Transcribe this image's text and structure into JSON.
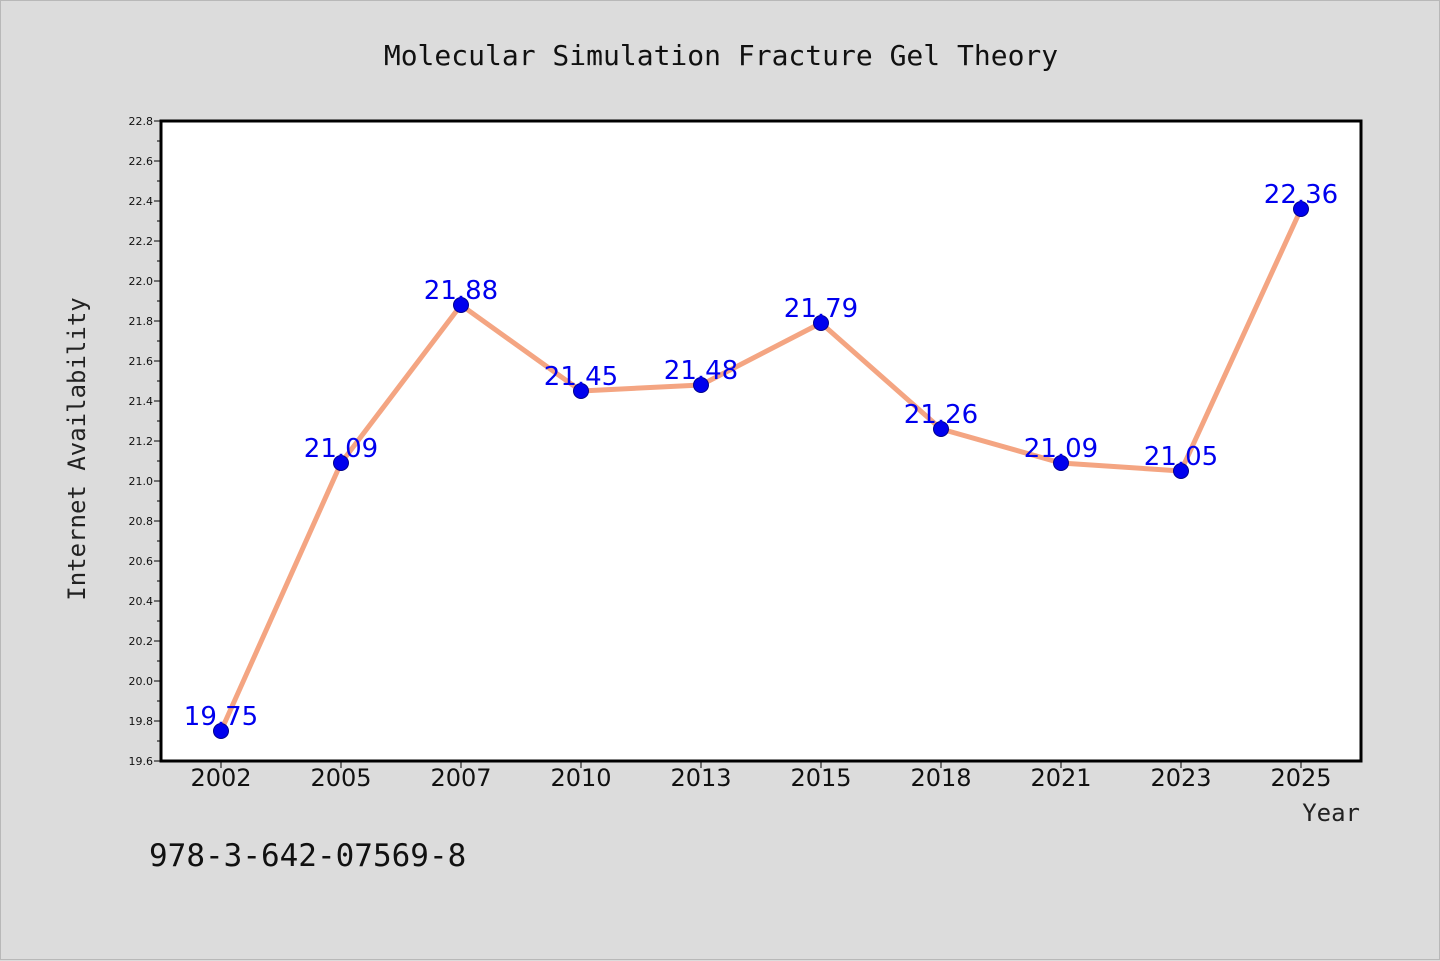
{
  "chart_data": {
    "type": "line",
    "title": "Molecular Simulation Fracture Gel Theory",
    "xlabel": "Year",
    "ylabel": "Internet Availability",
    "categories": [
      "2002",
      "2005",
      "2007",
      "2010",
      "2013",
      "2015",
      "2018",
      "2021",
      "2023",
      "2025"
    ],
    "series": [
      {
        "values": [
          19.75,
          21.09,
          21.88,
          21.45,
          21.48,
          21.79,
          21.26,
          21.09,
          21.05,
          22.36
        ],
        "labels": [
          "19.75",
          "21.09",
          "21.88",
          "21.45",
          "21.48",
          "21.79",
          "21.26",
          "21.09",
          "21.05",
          "22.36"
        ]
      }
    ],
    "ylim": [
      19.6,
      22.8
    ],
    "yticks": [
      "19.6",
      "19.8",
      "20.0",
      "20.2",
      "20.4",
      "20.6",
      "20.8",
      "21.0",
      "21.2",
      "21.4",
      "21.6",
      "21.8",
      "22.0",
      "22.2",
      "22.4",
      "22.6",
      "22.8"
    ],
    "grid": false,
    "legend": "none",
    "colors": {
      "line": "#f4a582",
      "marker": "#0000ee",
      "marker_edge": "#00008b",
      "data_label": "#0000ee",
      "plot_bg": "#ffffff",
      "figure_bg": "#dcdcdc"
    }
  },
  "footer": {
    "identifier": "978-3-642-07569-8"
  }
}
